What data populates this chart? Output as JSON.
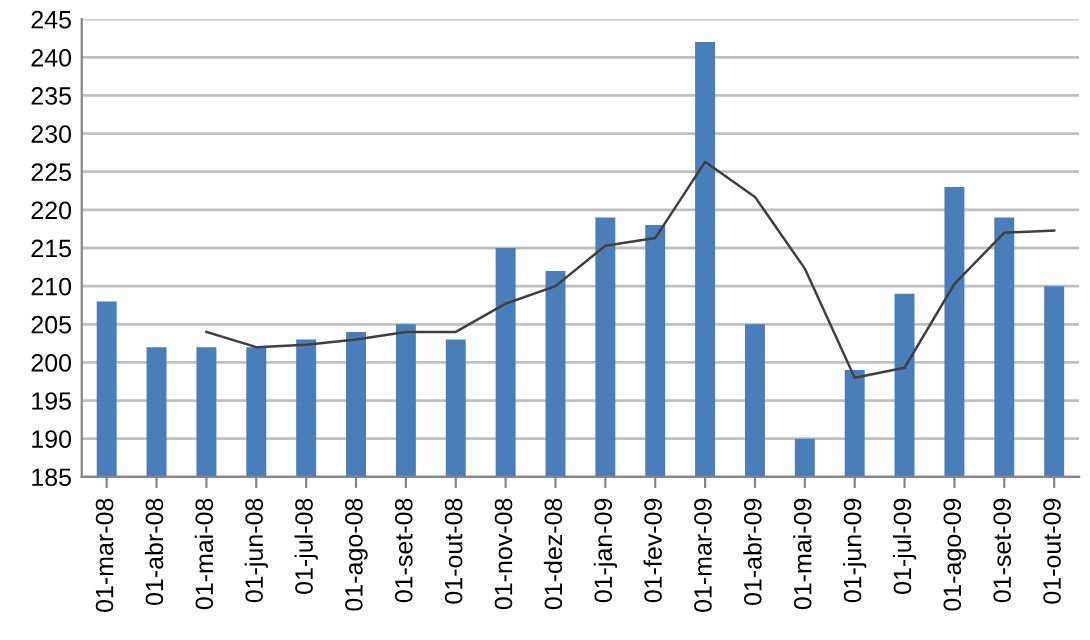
{
  "chart_data": {
    "type": "bar",
    "categories": [
      "01-mar-08",
      "01-abr-08",
      "01-mai-08",
      "01-jun-08",
      "01-jul-08",
      "01-ago-08",
      "01-set-08",
      "01-out-08",
      "01-nov-08",
      "01-dez-08",
      "01-jan-09",
      "01-fev-09",
      "01-mar-09",
      "01-abr-09",
      "01-mai-09",
      "01-jun-09",
      "01-jul-09",
      "01-ago-09",
      "01-set-09",
      "01-out-09"
    ],
    "series": [
      {
        "color": "#4a7ebb",
        "values": [
          208,
          202,
          202,
          202,
          203,
          204,
          205,
          203,
          215,
          212,
          219,
          218,
          242,
          205,
          190,
          199,
          209,
          223,
          219,
          210
        ]
      },
      {
        "type": "line",
        "color": "#404040",
        "values": [
          null,
          null,
          204,
          202,
          202.3,
          203,
          204,
          204,
          207.7,
          210,
          215.3,
          216.3,
          226.3,
          221.7,
          212.3,
          198,
          199.3,
          210.3,
          217,
          217.3
        ]
      }
    ],
    "ylim": [
      185,
      245
    ],
    "yticks": [
      185,
      190,
      195,
      200,
      205,
      210,
      215,
      220,
      225,
      230,
      235,
      240,
      245
    ],
    "grid": "y",
    "marker": "none",
    "line_style": "solid"
  }
}
